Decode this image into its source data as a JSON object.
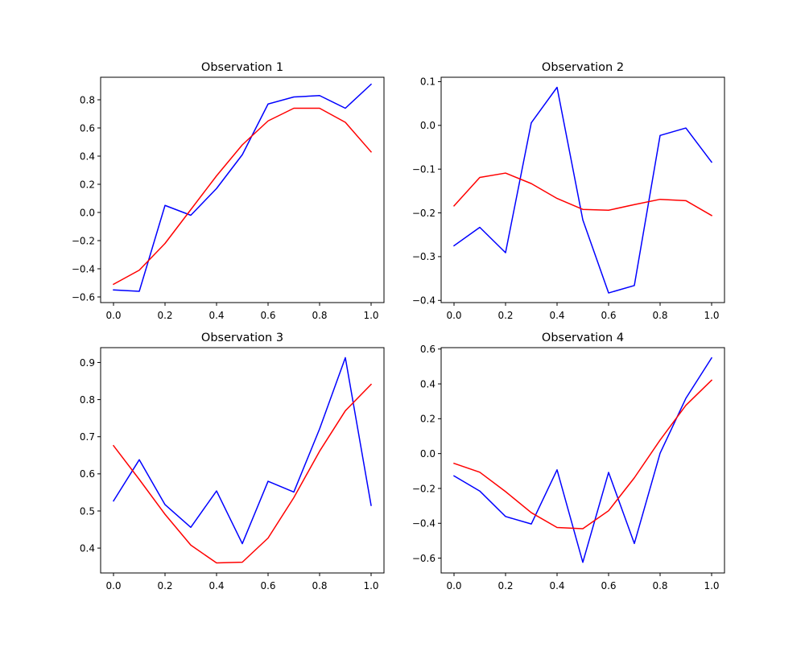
{
  "chart_data": [
    {
      "type": "line",
      "title": "Observation 1",
      "x": [
        0.0,
        0.1,
        0.2,
        0.3,
        0.4,
        0.5,
        0.6,
        0.7,
        0.8,
        0.9,
        1.0
      ],
      "xlim": [
        -0.05,
        1.05
      ],
      "ylim": [
        -0.64,
        0.96
      ],
      "xticks": [
        0.0,
        0.2,
        0.4,
        0.6,
        0.8,
        1.0
      ],
      "yticks": [
        -0.6,
        -0.4,
        -0.2,
        0.0,
        0.2,
        0.4,
        0.6,
        0.8
      ],
      "xtick_labels": [
        "0.0",
        "0.2",
        "0.4",
        "0.6",
        "0.8",
        "1.0"
      ],
      "ytick_labels": [
        "−0.6",
        "−0.4",
        "−0.2",
        "0.0",
        "0.2",
        "0.4",
        "0.6",
        "0.8"
      ],
      "series": [
        {
          "color": "#0000ff",
          "values": [
            -0.55,
            -0.56,
            0.05,
            -0.02,
            0.17,
            0.41,
            0.77,
            0.82,
            0.83,
            0.74,
            0.91
          ]
        },
        {
          "color": "#ff0000",
          "values": [
            -0.51,
            -0.41,
            -0.22,
            0.02,
            0.26,
            0.48,
            0.65,
            0.74,
            0.74,
            0.64,
            0.43
          ]
        }
      ]
    },
    {
      "type": "line",
      "title": "Observation 2",
      "x": [
        0.0,
        0.1,
        0.2,
        0.3,
        0.4,
        0.5,
        0.6,
        0.7,
        0.8,
        0.9,
        1.0
      ],
      "xlim": [
        -0.05,
        1.05
      ],
      "ylim": [
        -0.405,
        0.11
      ],
      "xticks": [
        0.0,
        0.2,
        0.4,
        0.6,
        0.8,
        1.0
      ],
      "yticks": [
        -0.4,
        -0.3,
        -0.2,
        -0.1,
        0.0,
        0.1
      ],
      "xtick_labels": [
        "0.0",
        "0.2",
        "0.4",
        "0.6",
        "0.8",
        "1.0"
      ],
      "ytick_labels": [
        "−0.4",
        "−0.3",
        "−0.2",
        "−0.1",
        "0.0",
        "0.1"
      ],
      "series": [
        {
          "color": "#0000ff",
          "values": [
            -0.275,
            -0.233,
            -0.291,
            0.006,
            0.087,
            -0.216,
            -0.383,
            -0.366,
            -0.023,
            -0.006,
            -0.084
          ]
        },
        {
          "color": "#ff0000",
          "values": [
            -0.184,
            -0.119,
            -0.109,
            -0.133,
            -0.167,
            -0.192,
            -0.194,
            -0.181,
            -0.169,
            -0.172,
            -0.206
          ]
        }
      ]
    },
    {
      "type": "line",
      "title": "Observation 3",
      "x": [
        0.0,
        0.1,
        0.2,
        0.3,
        0.4,
        0.5,
        0.6,
        0.7,
        0.8,
        0.9,
        1.0
      ],
      "xlim": [
        -0.05,
        1.05
      ],
      "ylim": [
        0.333,
        0.94
      ],
      "xticks": [
        0.0,
        0.2,
        0.4,
        0.6,
        0.8,
        1.0
      ],
      "yticks": [
        0.4,
        0.5,
        0.6,
        0.7,
        0.8,
        0.9
      ],
      "xtick_labels": [
        "0.0",
        "0.2",
        "0.4",
        "0.6",
        "0.8",
        "1.0"
      ],
      "ytick_labels": [
        "0.4",
        "0.5",
        "0.6",
        "0.7",
        "0.8",
        "0.9"
      ],
      "series": [
        {
          "color": "#0000ff",
          "values": [
            0.527,
            0.638,
            0.517,
            0.456,
            0.554,
            0.412,
            0.58,
            0.551,
            0.721,
            0.913,
            0.515
          ]
        },
        {
          "color": "#ff0000",
          "values": [
            0.676,
            0.585,
            0.491,
            0.408,
            0.36,
            0.362,
            0.427,
            0.536,
            0.661,
            0.77,
            0.841
          ]
        }
      ]
    },
    {
      "type": "line",
      "title": "Observation 4",
      "x": [
        0.0,
        0.1,
        0.2,
        0.3,
        0.4,
        0.5,
        0.6,
        0.7,
        0.8,
        0.9,
        1.0
      ],
      "xlim": [
        -0.05,
        1.05
      ],
      "ylim": [
        -0.685,
        0.608
      ],
      "xticks": [
        0.0,
        0.2,
        0.4,
        0.6,
        0.8,
        1.0
      ],
      "yticks": [
        -0.6,
        -0.4,
        -0.2,
        0.0,
        0.2,
        0.4,
        0.6
      ],
      "xtick_labels": [
        "0.0",
        "0.2",
        "0.4",
        "0.6",
        "0.8",
        "1.0"
      ],
      "ytick_labels": [
        "−0.6",
        "−0.4",
        "−0.2",
        "0.0",
        "0.2",
        "0.4",
        "0.6"
      ],
      "series": [
        {
          "color": "#0000ff",
          "values": [
            -0.128,
            -0.215,
            -0.361,
            -0.404,
            -0.093,
            -0.624,
            -0.108,
            -0.516,
            0.002,
            0.317,
            0.549
          ]
        },
        {
          "color": "#ff0000",
          "values": [
            -0.056,
            -0.107,
            -0.218,
            -0.339,
            -0.424,
            -0.431,
            -0.328,
            -0.139,
            0.078,
            0.277,
            0.421
          ]
        }
      ]
    }
  ]
}
